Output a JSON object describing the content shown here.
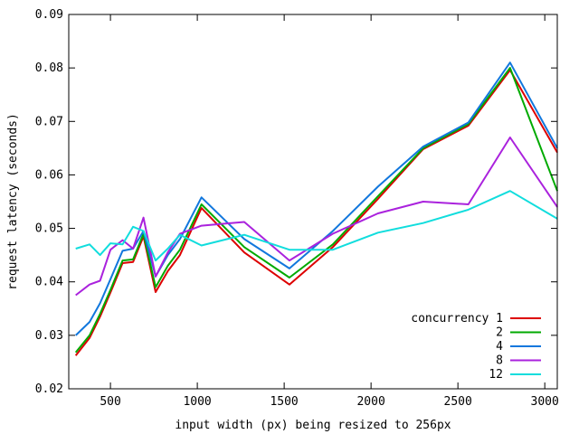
{
  "chart_data": {
    "type": "line",
    "title": "",
    "xlabel": "input width (px) being resized to 256px",
    "ylabel": "request latency (seconds)",
    "xlim": [
      260,
      3072
    ],
    "ylim": [
      0.02,
      0.09
    ],
    "xticks": [
      500,
      1000,
      1500,
      2000,
      2500,
      3000
    ],
    "yticks": [
      0.02,
      0.03,
      0.04,
      0.05,
      0.06,
      0.07,
      0.08,
      0.09
    ],
    "grid": false,
    "legend_position": "bottom-right",
    "x": [
      300,
      380,
      440,
      500,
      570,
      630,
      690,
      760,
      830,
      900,
      1024,
      1270,
      1530,
      1780,
      2040,
      2300,
      2560,
      2800,
      3072
    ],
    "series": [
      {
        "name": "concurrency 1",
        "color": "#dd0000",
        "values": [
          0.0262,
          0.0295,
          0.0335,
          0.038,
          0.0435,
          0.0437,
          0.0485,
          0.0381,
          0.042,
          0.045,
          0.0538,
          0.0455,
          0.0395,
          0.0465,
          0.0555,
          0.0648,
          0.0692,
          0.0796,
          0.0642
        ]
      },
      {
        "name": "2",
        "color": "#00aa00",
        "values": [
          0.0268,
          0.03,
          0.034,
          0.0385,
          0.044,
          0.0442,
          0.049,
          0.039,
          0.043,
          0.046,
          0.0545,
          0.0465,
          0.0408,
          0.047,
          0.056,
          0.065,
          0.0695,
          0.08,
          0.057
        ]
      },
      {
        "name": "4",
        "color": "#1177dd",
        "values": [
          0.03,
          0.0325,
          0.036,
          0.0405,
          0.0458,
          0.0462,
          0.0495,
          0.041,
          0.045,
          0.048,
          0.0558,
          0.048,
          0.0425,
          0.0495,
          0.0578,
          0.0653,
          0.0698,
          0.081,
          0.065
        ]
      },
      {
        "name": "8",
        "color": "#aa22dd",
        "values": [
          0.0375,
          0.0395,
          0.0402,
          0.046,
          0.0478,
          0.0462,
          0.052,
          0.041,
          0.0455,
          0.049,
          0.0505,
          0.0512,
          0.044,
          0.049,
          0.0528,
          0.055,
          0.0545,
          0.067,
          0.054
        ]
      },
      {
        "name": "12",
        "color": "#11dddd",
        "values": [
          0.0462,
          0.047,
          0.045,
          0.0472,
          0.047,
          0.0503,
          0.0495,
          0.044,
          0.0462,
          0.0488,
          0.0468,
          0.0488,
          0.046,
          0.046,
          0.0492,
          0.051,
          0.0535,
          0.057,
          0.0518
        ]
      }
    ]
  }
}
